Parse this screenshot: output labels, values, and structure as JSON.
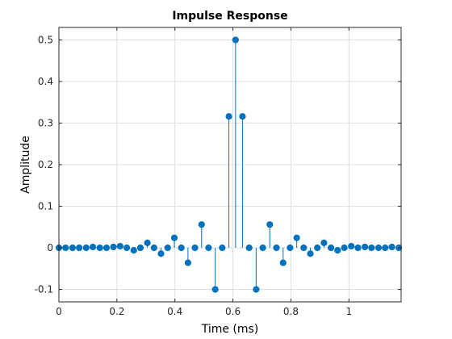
{
  "chart_data": {
    "type": "stem",
    "title": "Impulse Response",
    "xlabel": "Time (ms)",
    "ylabel": "Amplitude",
    "xlim": [
      0,
      1.18
    ],
    "ylim": [
      -0.13,
      0.53
    ],
    "xticks": [
      0,
      0.2,
      0.4,
      0.6,
      0.8,
      1
    ],
    "xtick_labels": [
      "0",
      "0.2",
      "0.4",
      "0.6",
      "0.8",
      "1"
    ],
    "yticks": [
      -0.1,
      0,
      0.1,
      0.2,
      0.3,
      0.4,
      0.5
    ],
    "ytick_labels": [
      "-0.1",
      "0",
      "0.1",
      "0.2",
      "0.3",
      "0.4",
      "0.5"
    ],
    "grid": true,
    "series": [
      {
        "color": "#0072BD",
        "x": [
          0,
          0.023,
          0.047,
          0.07,
          0.094,
          0.117,
          0.141,
          0.164,
          0.188,
          0.211,
          0.234,
          0.258,
          0.281,
          0.305,
          0.328,
          0.352,
          0.375,
          0.398,
          0.422,
          0.445,
          0.469,
          0.492,
          0.516,
          0.539,
          0.563,
          0.586,
          0.609,
          0.633,
          0.656,
          0.68,
          0.703,
          0.727,
          0.75,
          0.773,
          0.797,
          0.82,
          0.844,
          0.867,
          0.891,
          0.914,
          0.938,
          0.961,
          0.984,
          1.008,
          1.031,
          1.055,
          1.078,
          1.102,
          1.125,
          1.148,
          1.172
        ],
        "y": [
          0,
          0,
          0,
          0,
          0,
          0.002,
          0,
          0,
          0.002,
          0.004,
          0,
          -0.006,
          0,
          0.012,
          0,
          -0.014,
          0,
          0.024,
          0,
          -0.036,
          0,
          0.056,
          0,
          -0.1,
          0,
          0.316,
          0.5,
          0.316,
          0,
          -0.1,
          0,
          0.056,
          0,
          -0.036,
          0,
          0.024,
          0,
          -0.014,
          0,
          0.012,
          0,
          -0.006,
          0,
          0.004,
          0,
          0.002,
          0,
          0,
          0,
          0.002,
          0
        ]
      }
    ]
  }
}
